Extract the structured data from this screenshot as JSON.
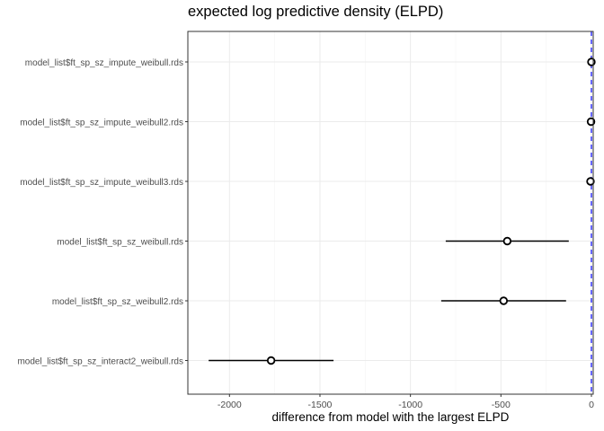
{
  "chart_data": {
    "type": "scatter",
    "title": "expected log predictive density (ELPD)",
    "xlabel": "difference from model with the largest ELPD",
    "ylabel": "",
    "xlim": [
      -2230,
      10
    ],
    "x_ticks": [
      -2000,
      -1500,
      -1000,
      -500,
      0
    ],
    "x_tick_labels": [
      "-2000",
      "-1500",
      "-1000",
      "-500",
      "0"
    ],
    "reference_line": {
      "x": 0,
      "style": "dashed",
      "color": "#0000FF"
    },
    "grid": true,
    "categories": [
      "model_list$ft_sp_sz_impute_weibull.rds",
      "model_list$ft_sp_sz_impute_weibull2.rds",
      "model_list$ft_sp_sz_impute_weibull3.rds",
      "model_list$ft_sp_sz_weibull.rds",
      "model_list$ft_sp_sz_weibull2.rds",
      "model_list$ft_sp_sz_interact2_weibull.rds"
    ],
    "series": [
      {
        "estimates": [
          0,
          -2,
          -5,
          -465,
          -485,
          -1770
        ],
        "lower": [
          0,
          -2,
          -5,
          -805,
          -830,
          -2115
        ],
        "upper": [
          0,
          -2,
          -5,
          -125,
          -140,
          -1425
        ]
      }
    ]
  }
}
